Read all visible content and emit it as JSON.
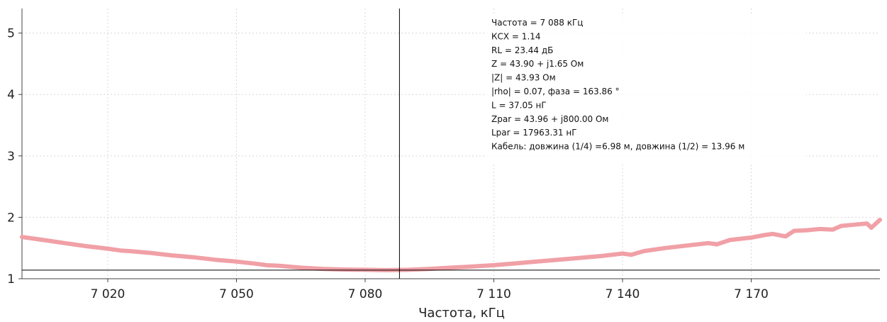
{
  "chart_data": {
    "type": "line",
    "xlabel": "Частота, кГц",
    "ylabel": "",
    "xlim": [
      7000,
      7200
    ],
    "ylim": [
      1,
      5.4
    ],
    "x_ticks": [
      "7 020",
      "7 050",
      "7 080",
      "7 110",
      "7 140",
      "7 170"
    ],
    "x_tick_values": [
      7020,
      7050,
      7080,
      7110,
      7140,
      7170
    ],
    "y_ticks": [
      "1",
      "2",
      "3",
      "4",
      "5"
    ],
    "y_tick_values": [
      1,
      2,
      3,
      4,
      5
    ],
    "grid": true,
    "series": [
      {
        "color": "#f0a0a6",
        "x": [
          7000,
          7005,
          7010,
          7015,
          7020,
          7023,
          7025,
          7030,
          7035,
          7040,
          7045,
          7050,
          7055,
          7057,
          7060,
          7065,
          7070,
          7075,
          7080,
          7085,
          7090,
          7095,
          7100,
          7105,
          7110,
          7115,
          7120,
          7125,
          7130,
          7135,
          7140,
          7142,
          7145,
          7150,
          7155,
          7160,
          7162,
          7165,
          7170,
          7173,
          7175,
          7178,
          7180,
          7183,
          7186,
          7189,
          7191,
          7194,
          7197,
          7198,
          7200
        ],
        "y": [
          1.68,
          1.63,
          1.58,
          1.53,
          1.49,
          1.46,
          1.45,
          1.42,
          1.38,
          1.35,
          1.31,
          1.28,
          1.24,
          1.22,
          1.21,
          1.18,
          1.16,
          1.15,
          1.145,
          1.14,
          1.145,
          1.16,
          1.18,
          1.2,
          1.22,
          1.25,
          1.28,
          1.31,
          1.34,
          1.37,
          1.41,
          1.39,
          1.45,
          1.5,
          1.54,
          1.58,
          1.56,
          1.63,
          1.67,
          1.71,
          1.73,
          1.69,
          1.78,
          1.79,
          1.81,
          1.8,
          1.86,
          1.88,
          1.9,
          1.83,
          1.96
        ]
      }
    ],
    "reference_line": {
      "y": 1.14,
      "color": "#000000"
    },
    "cursor_line": {
      "x": 7088,
      "color": "#000000"
    },
    "annotation": [
      "Частота = 7 088 кГц",
      "КСХ = 1.14",
      "RL = 23.44 дБ",
      "Z = 43.90 + j1.65 Ом",
      "|Z| = 43.93 Ом",
      "|rho| = 0.07, фаза = 163.86 °",
      "L = 37.05 нГ",
      "Zpar = 43.96 + j800.00 Ом",
      "Lpar = 17963.31 нГ",
      "Кабель: довжина (1/4) =6.98 м, довжина (1/2) = 13.96 м"
    ]
  }
}
